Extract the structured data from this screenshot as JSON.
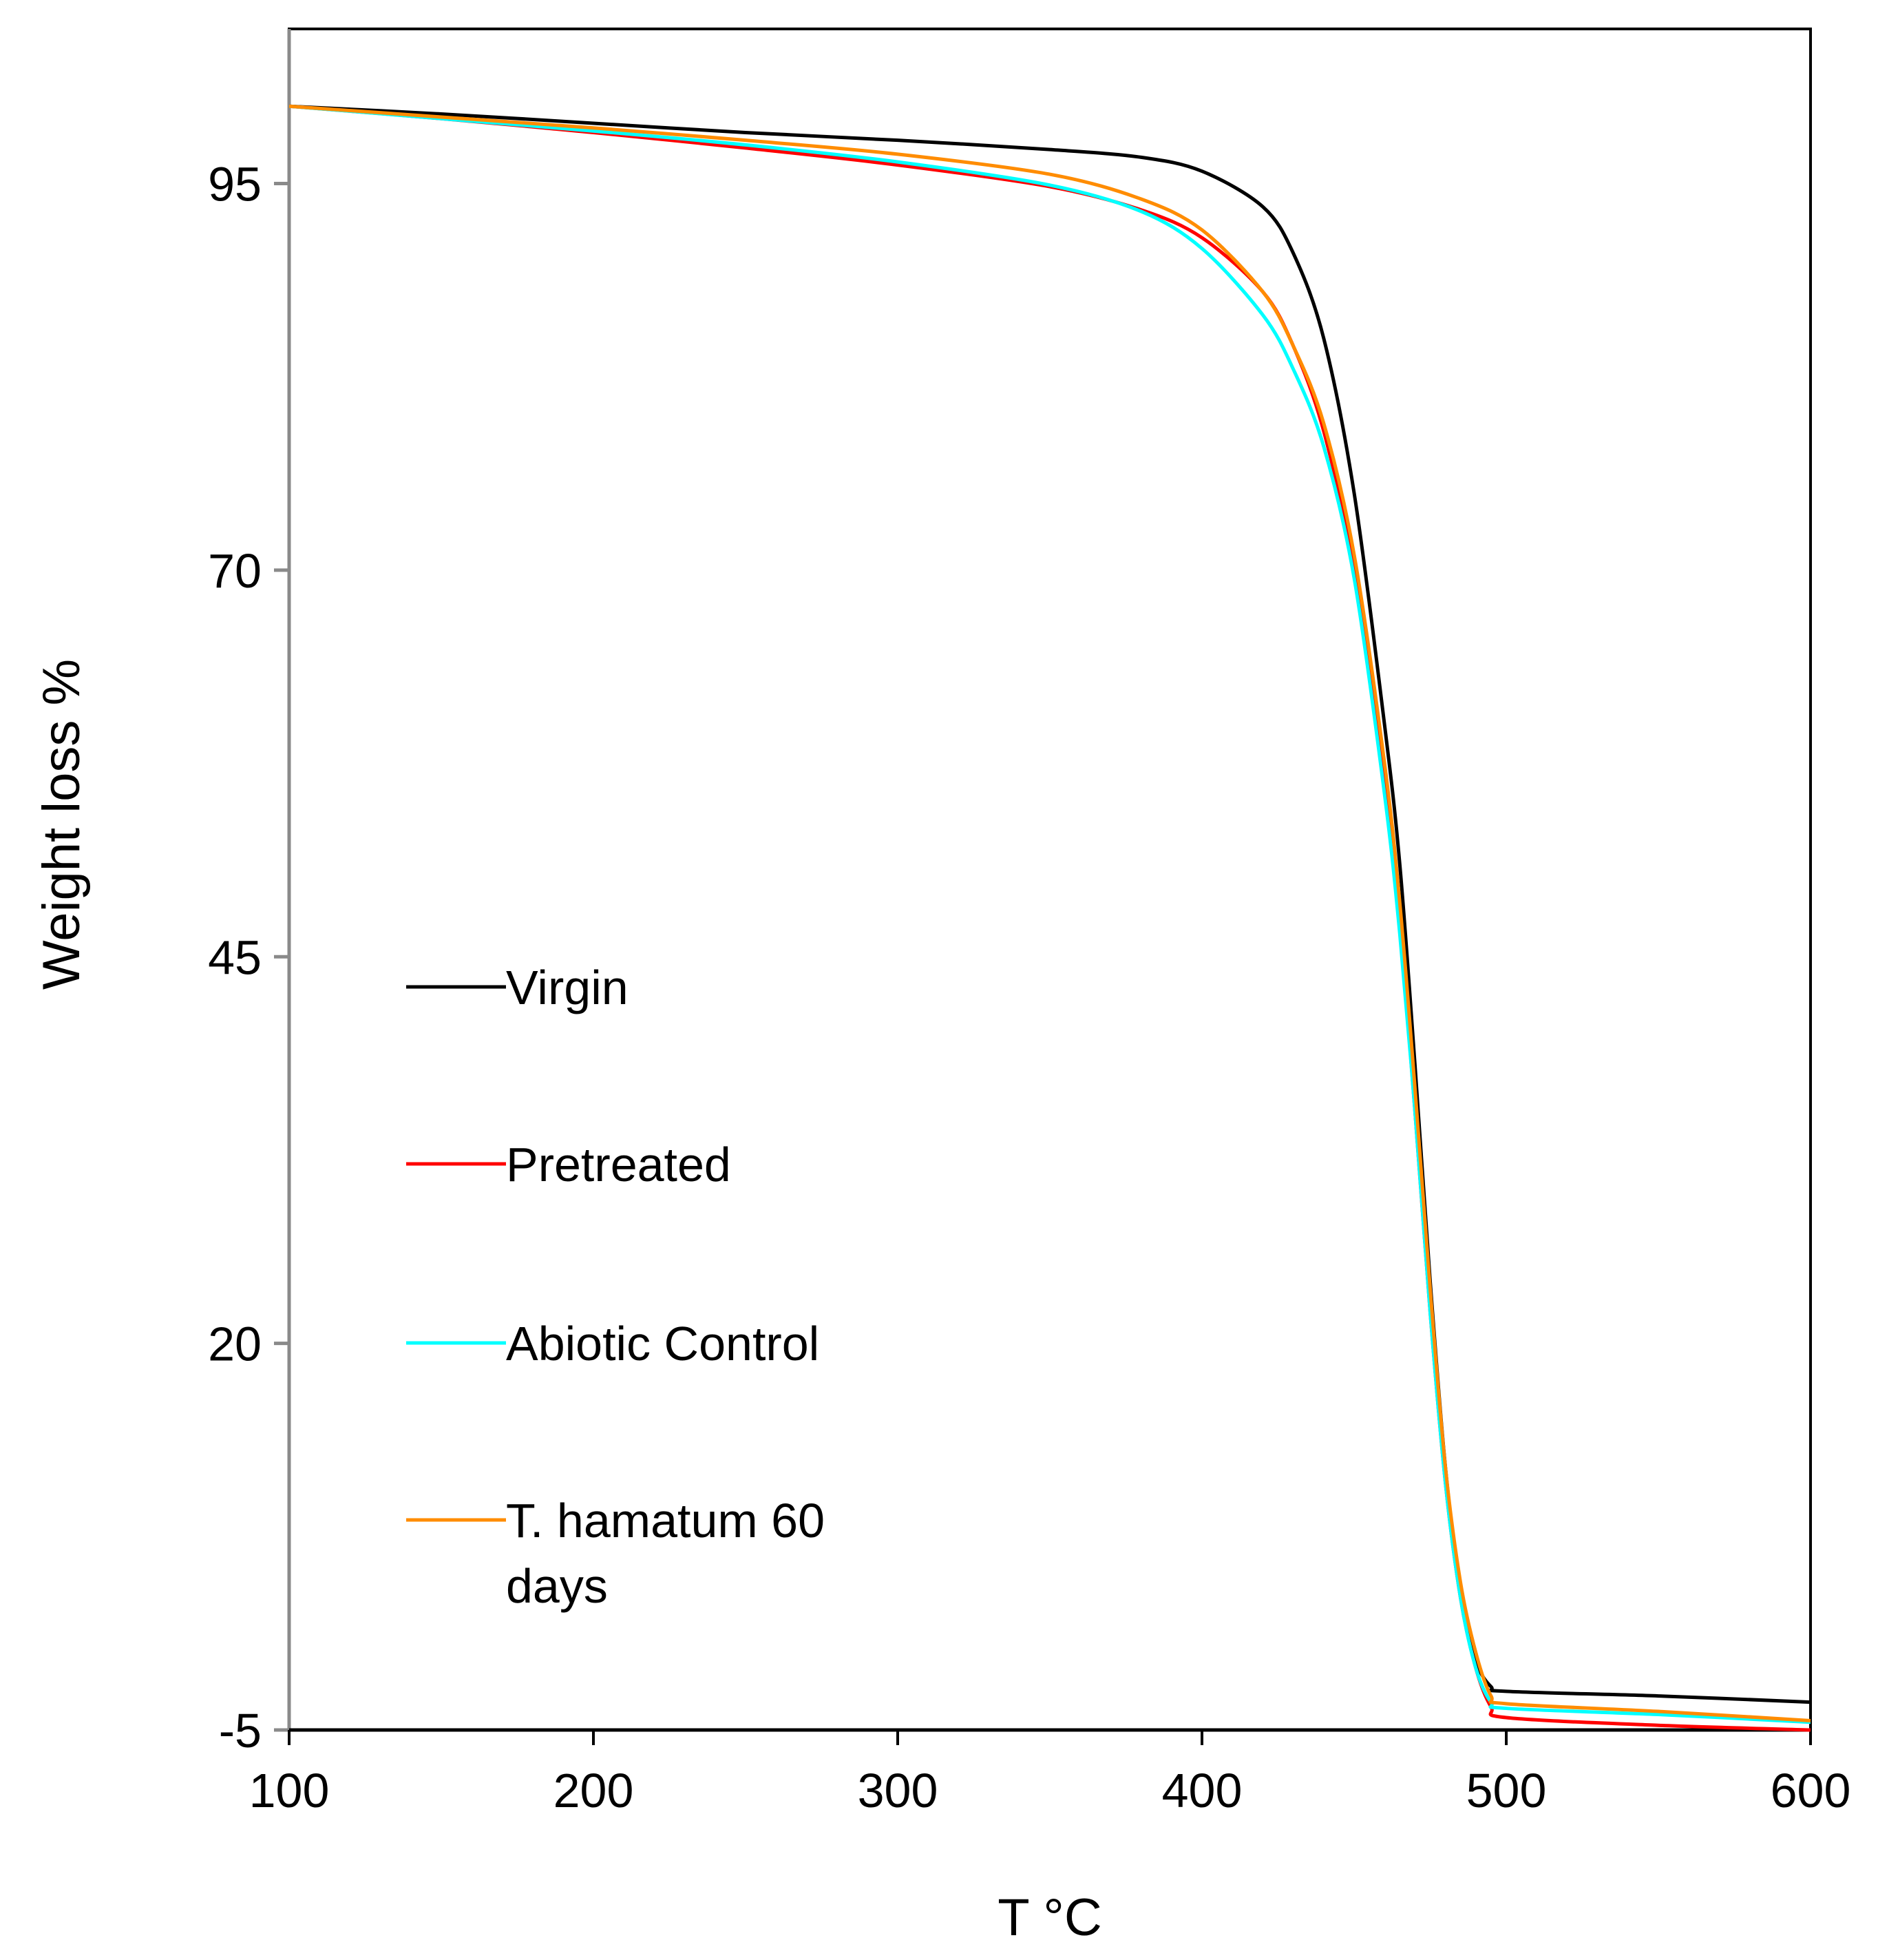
{
  "chart_data": {
    "type": "line",
    "title": "",
    "xlabel": "T °C",
    "ylabel": "Weight loss %",
    "xlim": [
      100,
      600
    ],
    "ylim": [
      -5,
      105
    ],
    "xticks": [
      100,
      200,
      300,
      400,
      500,
      600
    ],
    "yticks": [
      -5,
      20,
      45,
      70,
      95
    ],
    "xtick_labels": [
      "100",
      "200",
      "300",
      "400",
      "500",
      "600"
    ],
    "ytick_labels": [
      "-5",
      "20",
      "45",
      "70",
      "95"
    ],
    "grid": false,
    "legend_position": "center-left",
    "series": [
      {
        "name": "Virgin",
        "color": "#000000",
        "x": [
          100,
          150,
          200,
          250,
          300,
          350,
          380,
          400,
          420,
          430,
          440,
          450,
          460,
          465,
          470,
          475,
          480,
          485,
          490,
          495,
          500,
          550,
          600
        ],
        "y": [
          100,
          99.5,
          98.9,
          98.3,
          97.8,
          97.2,
          96.7,
          95.8,
          93.5,
          90.5,
          85.0,
          75.0,
          60.0,
          51.0,
          38.0,
          24.0,
          12.0,
          4.0,
          -0.5,
          -2.2,
          -2.5,
          -2.8,
          -3.2
        ]
      },
      {
        "name": "Pretreated",
        "color": "#ff0000",
        "x": [
          100,
          150,
          200,
          250,
          300,
          350,
          380,
          400,
          420,
          430,
          440,
          450,
          460,
          465,
          470,
          475,
          480,
          485,
          490,
          495,
          500,
          550,
          600
        ],
        "y": [
          100,
          99.2,
          98.3,
          97.3,
          96.2,
          94.8,
          93.3,
          91.5,
          88.0,
          84.5,
          79.0,
          70.0,
          56.0,
          47.0,
          35.0,
          22.0,
          11.0,
          3.5,
          -1.0,
          -3.5,
          -4.2,
          -4.7,
          -5.0
        ]
      },
      {
        "name": "Abiotic Control",
        "color": "#00ffff",
        "x": [
          100,
          150,
          200,
          250,
          300,
          350,
          380,
          400,
          420,
          430,
          440,
          450,
          460,
          465,
          470,
          475,
          480,
          485,
          490,
          495,
          500,
          550,
          600
        ],
        "y": [
          100,
          99.2,
          98.4,
          97.5,
          96.4,
          94.9,
          93.2,
          90.8,
          86.5,
          83.0,
          78.0,
          69.5,
          55.5,
          46.5,
          35.0,
          22.0,
          11.0,
          3.5,
          -1.0,
          -3.2,
          -3.6,
          -4.0,
          -4.5
        ]
      },
      {
        "name": "T. hamatum 60 days",
        "color": "#ff8c00",
        "x": [
          100,
          150,
          200,
          250,
          300,
          350,
          380,
          400,
          420,
          430,
          440,
          450,
          460,
          465,
          470,
          475,
          480,
          485,
          490,
          495,
          500,
          550,
          600
        ],
        "y": [
          100,
          99.3,
          98.6,
          97.8,
          96.9,
          95.6,
          94.0,
          92.0,
          88.0,
          84.5,
          79.5,
          71.0,
          57.5,
          48.5,
          36.5,
          23.5,
          12.0,
          4.5,
          0.0,
          -2.8,
          -3.3,
          -3.8,
          -4.4
        ]
      }
    ]
  }
}
